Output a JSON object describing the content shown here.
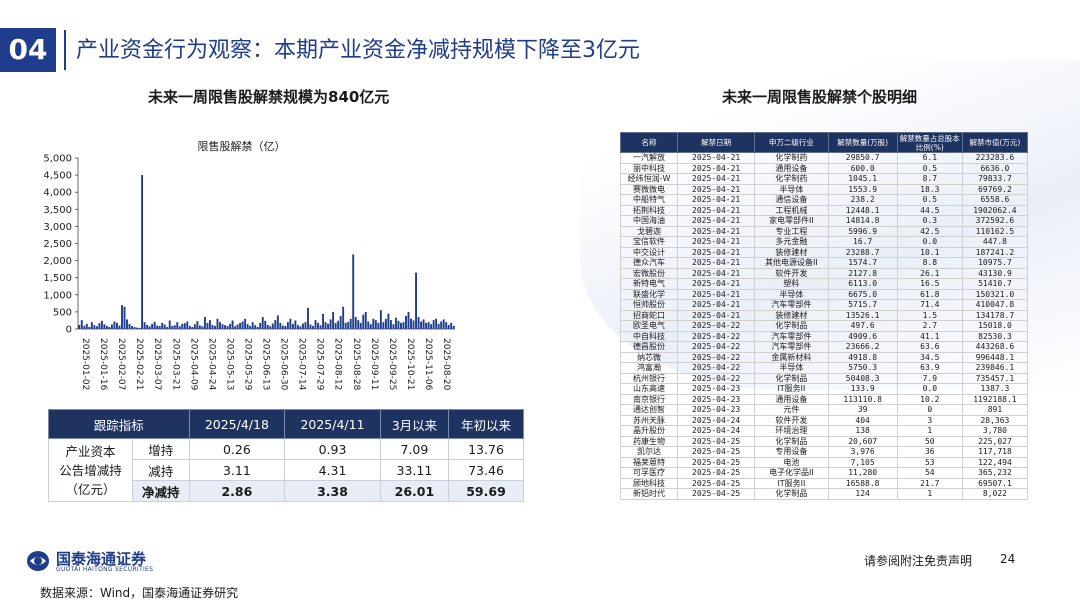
{
  "header": {
    "section_number": "04",
    "title": "产业资金行为观察：本期产业资金净减持规模下降至3亿元"
  },
  "left": {
    "subtitle": "未来一周限售股解禁规模为840亿元"
  },
  "right": {
    "subtitle": "未来一周限售股解禁个股明细"
  },
  "chart_data": {
    "type": "bar",
    "title": "限售股解禁（亿）",
    "ylim": [
      0,
      5000
    ],
    "yticks": [
      "0",
      "500",
      "1,000",
      "1,500",
      "2,000",
      "2,500",
      "3,000",
      "3,500",
      "4,000",
      "4,500",
      "5,000"
    ],
    "xticks": [
      "2025-01-02",
      "2025-01-16",
      "2025-02-07",
      "2025-02-21",
      "2025-03-07",
      "2025-03-21",
      "2025-04-09",
      "2025-04-24",
      "2025-05-13",
      "2025-05-29",
      "2025-06-13",
      "2025-06-30",
      "2025-07-14",
      "2025-07-29",
      "2025-08-12",
      "2025-08-28",
      "2025-09-11",
      "2025-09-25",
      "2025-10-21",
      "2025-11-06",
      "2025-08-20"
    ],
    "values": [
      120,
      260,
      90,
      150,
      60,
      200,
      110,
      80,
      170,
      240,
      140,
      90,
      60,
      130,
      220,
      180,
      100,
      700,
      650,
      280,
      150,
      90,
      60,
      40,
      30,
      4500,
      200,
      120,
      80,
      150,
      210,
      100,
      90,
      180,
      130,
      60,
      250,
      90,
      110,
      200,
      80,
      150,
      170,
      220,
      90,
      60,
      140,
      230,
      100,
      80,
      350,
      180,
      260,
      120,
      90,
      300,
      200,
      140,
      110,
      90,
      150,
      250,
      80,
      130,
      180,
      220,
      300,
      140,
      90,
      200,
      110,
      60,
      180,
      350,
      240,
      120,
      80,
      160,
      260,
      400,
      180,
      100,
      90,
      200,
      300,
      150,
      250,
      110,
      80,
      160,
      200,
      620,
      130,
      90,
      260,
      180,
      110,
      440,
      200,
      150,
      280,
      500,
      170,
      240,
      380,
      650,
      180,
      210,
      300,
      2180,
      350,
      260,
      180,
      420,
      500,
      220,
      140,
      300,
      260,
      180,
      550,
      200,
      300,
      450,
      260,
      140,
      330,
      240,
      180,
      200,
      380,
      500,
      300,
      250,
      1650,
      350,
      220,
      280,
      180,
      200,
      140,
      260,
      300,
      150,
      220,
      280,
      200,
      120,
      180,
      90
    ],
    "color": "#1f3d8c"
  },
  "track": {
    "headers": [
      "跟踪指标",
      "2025/4/18",
      "2025/4/11",
      "3月以来",
      "年初以来"
    ],
    "label": "产业资本\n公告增减持\n（亿元）",
    "rows": [
      {
        "name": "增持",
        "v": [
          "0.26",
          "0.93",
          "7.09",
          "13.76"
        ]
      },
      {
        "name": "减持",
        "v": [
          "3.11",
          "4.31",
          "33.11",
          "73.46"
        ]
      },
      {
        "name": "净减持",
        "v": [
          "2.86",
          "3.38",
          "26.01",
          "59.69"
        ]
      }
    ]
  },
  "stocks": {
    "headers": [
      "名称",
      "解禁日期",
      "申万二级行业",
      "解禁数量(万股)",
      "解禁数量占总股本比例(%)",
      "解禁市值(万元)"
    ],
    "rows": [
      [
        "一汽解放",
        "2025-04-21",
        "化学制药",
        "29850.7",
        "6.1",
        "223283.6"
      ],
      [
        "丽中科技",
        "2025-04-21",
        "通用设备",
        "600.0",
        "0.5",
        "6636.0"
      ],
      [
        "经纬恒润-W",
        "2025-04-21",
        "化学制药",
        "1045.1",
        "8.7",
        "79833.7"
      ],
      [
        "赛微微电",
        "2025-04-21",
        "半导体",
        "1553.9",
        "18.3",
        "69769.2"
      ],
      [
        "中船特气",
        "2025-04-21",
        "通信设备",
        "238.2",
        "0.5",
        "6558.6"
      ],
      [
        "拓荆科技",
        "2025-04-21",
        "工程机械",
        "12448.1",
        "44.5",
        "1902062.4"
      ],
      [
        "中国海油",
        "2025-04-21",
        "家电零部件II",
        "14814.8",
        "0.3",
        "372592.6"
      ],
      [
        "戈碧迦",
        "2025-04-21",
        "专业工程",
        "5996.9",
        "42.5",
        "110162.5"
      ],
      [
        "宝信软件",
        "2025-04-21",
        "多元金融",
        "16.7",
        "0.0",
        "447.8"
      ],
      [
        "中交设计",
        "2025-04-21",
        "装修建材",
        "23288.7",
        "10.1",
        "187241.2"
      ],
      [
        "德众汽车",
        "2025-04-21",
        "其他电源设备II",
        "1574.7",
        "8.8",
        "10975.7"
      ],
      [
        "宏微股份",
        "2025-04-21",
        "软件开发",
        "2127.8",
        "26.1",
        "43130.9"
      ],
      [
        "新特电气",
        "2025-04-21",
        "塑料",
        "6113.0",
        "16.5",
        "51410.7"
      ],
      [
        "联盛化学",
        "2025-04-21",
        "半导体",
        "6675.0",
        "61.8",
        "150321.0"
      ],
      [
        "恒帅股份",
        "2025-04-21",
        "汽车零部件",
        "5715.7",
        "71.4",
        "410047.8"
      ],
      [
        "招商蛇口",
        "2025-04-21",
        "装修建材",
        "13526.1",
        "1.5",
        "134178.7"
      ],
      [
        "欧圣电气",
        "2025-04-22",
        "化学制品",
        "497.6",
        "2.7",
        "15018.0"
      ],
      [
        "中自科技",
        "2025-04-22",
        "汽车零部件",
        "4909.6",
        "41.1",
        "82530.3"
      ],
      [
        "德昌股份",
        "2025-04-22",
        "汽车零部件",
        "23666.2",
        "63.6",
        "443268.6"
      ],
      [
        "纳芯微",
        "2025-04-22",
        "金属新材料",
        "4918.8",
        "34.5",
        "996448.1"
      ],
      [
        "鸿富瀚",
        "2025-04-22",
        "半导体",
        "5750.3",
        "63.9",
        "239846.1"
      ],
      [
        "杭州银行",
        "2025-04-22",
        "化学制品",
        "50408.3",
        "7.9",
        "735457.1"
      ],
      [
        "山东高速",
        "2025-04-23",
        "IT服务II",
        "133.9",
        "0.0",
        "1387.3"
      ],
      [
        "南京银行",
        "2025-04-23",
        "通用设备",
        "113110.8",
        "10.2",
        "1192188.1"
      ],
      [
        "通达创智",
        "2025-04-23",
        "元件",
        "39",
        "0",
        "891"
      ],
      [
        "苏州天脉",
        "2025-04-24",
        "软件开发",
        "404",
        "3",
        "28,363"
      ],
      [
        "晶升股份",
        "2025-04-24",
        "环境治理",
        "138",
        "1",
        "3,780"
      ],
      [
        "药康生物",
        "2025-04-25",
        "化学制品",
        "20,607",
        "50",
        "225,027"
      ],
      [
        "凯尔达",
        "2025-04-25",
        "专用设备",
        "3,976",
        "36",
        "117,718"
      ],
      [
        "福莱蒽特",
        "2025-04-25",
        "电池",
        "7,105",
        "53",
        "122,494"
      ],
      [
        "可孚医疗",
        "2025-04-25",
        "电子化学品II",
        "11,280",
        "54",
        "365,232"
      ],
      [
        "顾地科技",
        "2025-04-25",
        "IT服务II",
        "16588.8",
        "21.7",
        "69507.1"
      ],
      [
        "新铝时代",
        "2025-04-25",
        "化学制品",
        "124",
        "1",
        "8,022"
      ]
    ]
  },
  "footer": {
    "logo_cn": "国泰海通证券",
    "logo_en": "GUOTAI HAITONG SECURITIES",
    "disclaimer": "请参阅附注免责声明",
    "page": "24",
    "source": "数据来源：Wind，国泰海通证券研究"
  }
}
